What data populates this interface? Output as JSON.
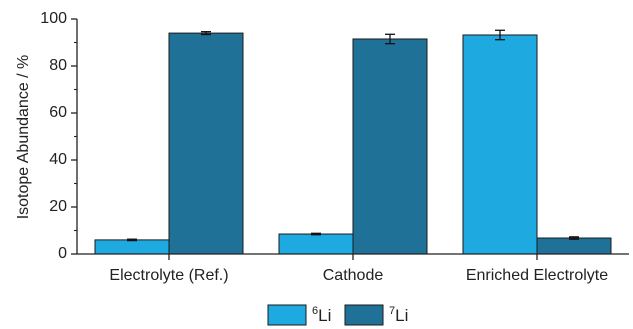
{
  "chart_data": {
    "type": "bar",
    "ylabel": "Isotope Abundance / %",
    "xlabel": "",
    "ylim": [
      0,
      100
    ],
    "yticks": [
      0,
      20,
      40,
      60,
      80,
      100
    ],
    "categories": [
      "Electrolyte (Ref.)",
      "Cathode",
      "Enriched Electrolyte"
    ],
    "series": [
      {
        "name_prefix": "6",
        "name_suffix": "Li",
        "color": "#1ea9e1",
        "values": [
          6.0,
          8.5,
          93.2
        ],
        "errors": [
          0.3,
          0.3,
          2.0
        ]
      },
      {
        "name_prefix": "7",
        "name_suffix": "Li",
        "color": "#1f7198",
        "values": [
          94.0,
          91.5,
          6.8
        ],
        "errors": [
          0.6,
          2.0,
          0.5
        ]
      }
    ],
    "legend_position": "bottom-center",
    "grid": false
  }
}
